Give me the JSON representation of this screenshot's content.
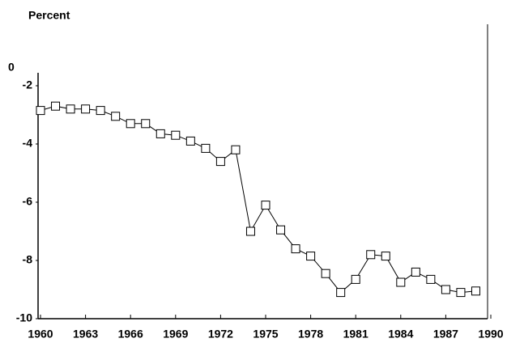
{
  "chart_data": {
    "type": "line",
    "y_axis_label": "Percent",
    "y_axis_top_label": "0",
    "x": [
      1960,
      1961,
      1962,
      1963,
      1964,
      1965,
      1966,
      1967,
      1968,
      1969,
      1970,
      1971,
      1972,
      1973,
      1974,
      1975,
      1976,
      1977,
      1978,
      1979,
      1980,
      1981,
      1982,
      1983,
      1984,
      1985,
      1986,
      1987,
      1988,
      1989
    ],
    "series": [
      {
        "color": "#000000",
        "values": [
          -2.85,
          -2.7,
          -2.8,
          -2.8,
          -2.85,
          -3.05,
          -3.3,
          -3.3,
          -3.65,
          -3.7,
          -3.9,
          -4.15,
          -4.6,
          -4.2,
          -7.0,
          -6.1,
          -6.95,
          -7.6,
          -7.85,
          -8.45,
          -9.1,
          -8.65,
          -7.8,
          -7.85,
          -8.75,
          -8.4,
          -8.65,
          -9.0,
          -9.1,
          -9.05
        ]
      }
    ],
    "xlim": [
      1960,
      1990
    ],
    "xticks": [
      1960,
      1963,
      1966,
      1969,
      1972,
      1975,
      1978,
      1981,
      1984,
      1987,
      1990
    ],
    "ylim": [
      -10,
      -1.5
    ],
    "yticks": [
      -10,
      -8,
      -6,
      -4,
      -2
    ],
    "grid": false,
    "marker": "square"
  }
}
